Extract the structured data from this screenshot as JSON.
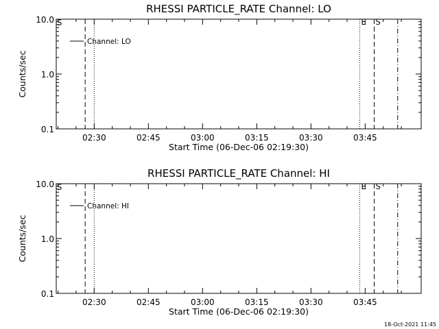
{
  "footer": {
    "timestamp": "18-Oct-2021 11:45"
  },
  "chart_data": [
    {
      "type": "line",
      "title": "RHESSI PARTICLE_RATE Channel: LO",
      "xlabel": "Start Time (06-Dec-06 02:19:30)",
      "ylabel": "Counts/sec",
      "yscale": "log",
      "ylim": [
        0.1,
        10.0
      ],
      "y_ticks": [
        {
          "value": 0.1,
          "label": "0.1"
        },
        {
          "value": 1.0,
          "label": "1.0"
        },
        {
          "value": 10.0,
          "label": "10.0"
        }
      ],
      "xlim": [
        "02:19:30",
        "04:00:30"
      ],
      "x_ticks": [
        "02:30",
        "02:45",
        "03:00",
        "03:15",
        "03:30",
        "03:45"
      ],
      "legend": {
        "position": "top-left",
        "entries": [
          "Channel: LO"
        ]
      },
      "series": [
        {
          "name": "Channel: LO",
          "x": [],
          "y": []
        }
      ],
      "event_lines": [
        {
          "time": "02:27:30",
          "style": "dashed",
          "label": ""
        },
        {
          "time": "02:30:00",
          "style": "dotted",
          "label": ""
        },
        {
          "time": "03:43:30",
          "style": "dotted",
          "label": "E"
        },
        {
          "time": "03:47:30",
          "style": "dashed",
          "label": "S"
        },
        {
          "time": "03:54:00",
          "style": "dashdot",
          "label": ""
        }
      ],
      "corner_label": "S"
    },
    {
      "type": "line",
      "title": "RHESSI PARTICLE_RATE Channel: HI",
      "xlabel": "Start Time (06-Dec-06 02:19:30)",
      "ylabel": "Counts/sec",
      "yscale": "log",
      "ylim": [
        0.1,
        10.0
      ],
      "y_ticks": [
        {
          "value": 0.1,
          "label": "0.1"
        },
        {
          "value": 1.0,
          "label": "1.0"
        },
        {
          "value": 10.0,
          "label": "10.0"
        }
      ],
      "xlim": [
        "02:19:30",
        "04:00:30"
      ],
      "x_ticks": [
        "02:30",
        "02:45",
        "03:00",
        "03:15",
        "03:30",
        "03:45"
      ],
      "legend": {
        "position": "top-left",
        "entries": [
          "Channel: HI"
        ]
      },
      "series": [
        {
          "name": "Channel: HI",
          "x": [],
          "y": []
        }
      ],
      "event_lines": [
        {
          "time": "02:27:30",
          "style": "dashed",
          "label": ""
        },
        {
          "time": "02:30:00",
          "style": "dotted",
          "label": ""
        },
        {
          "time": "03:43:30",
          "style": "dotted",
          "label": "E"
        },
        {
          "time": "03:47:30",
          "style": "dashed",
          "label": "S"
        },
        {
          "time": "03:54:00",
          "style": "dashdot",
          "label": ""
        }
      ],
      "corner_label": "S"
    }
  ]
}
